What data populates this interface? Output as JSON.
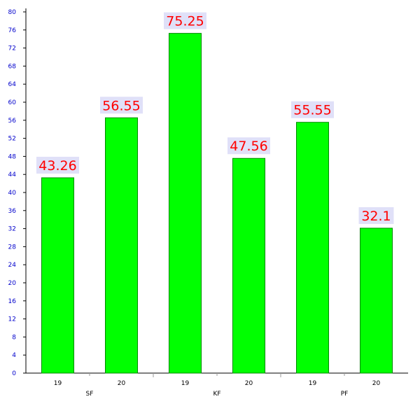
{
  "chart_data": {
    "type": "bar",
    "groups": [
      "SF",
      "KF",
      "PF"
    ],
    "categories": [
      "19",
      "20",
      "19",
      "20",
      "19",
      "20"
    ],
    "values": [
      43.26,
      56.55,
      75.25,
      47.56,
      55.55,
      32.1
    ],
    "value_labels": [
      "43.26",
      "56.55",
      "75.25",
      "47.56",
      "55.55",
      "32.1"
    ],
    "ylim": [
      0,
      80
    ],
    "yticks": [
      0,
      4,
      8,
      12,
      16,
      20,
      24,
      28,
      32,
      36,
      40,
      44,
      48,
      52,
      56,
      60,
      64,
      68,
      72,
      76,
      80
    ],
    "title": "",
    "xlabel": "",
    "ylabel": "",
    "grid": false,
    "colors": {
      "bar": "#00ff00",
      "bar_border": "#008800",
      "value_label": "#ff0000",
      "value_label_bg": "#e0e0f8",
      "ytick_label": "#0000cc"
    }
  }
}
